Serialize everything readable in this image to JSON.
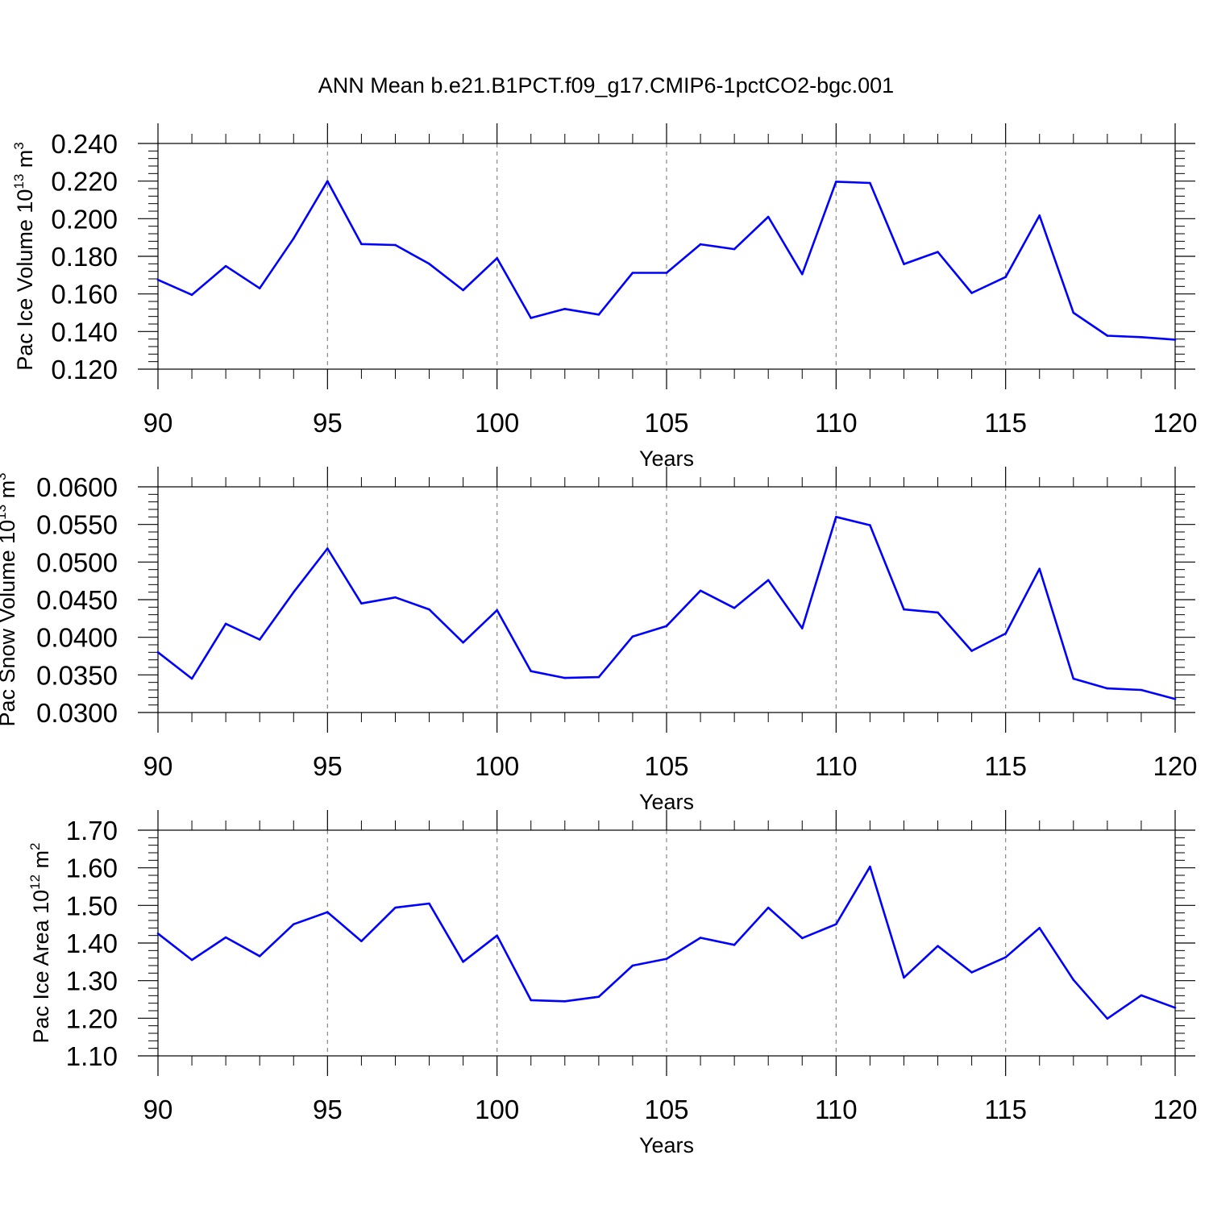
{
  "title": "ANN Mean b.e21.B1PCT.f09_g17.CMIP6-1pctCO2-bgc.001",
  "series_color": "#0000ff",
  "chart_data": [
    {
      "type": "line",
      "ylabel_main": "Pac Ice Volume 10",
      "ylabel_exp": "13",
      "ylabel_unit": "m",
      "ylabel_unit_exp": "3",
      "xlabel": "Years",
      "xlim": [
        90,
        120
      ],
      "ylim": [
        0.12,
        0.24
      ],
      "yticks": [
        0.12,
        0.14,
        0.16,
        0.18,
        0.2,
        0.22,
        0.24
      ],
      "ytick_labels": [
        "0.120",
        "0.140",
        "0.160",
        "0.180",
        "0.200",
        "0.220",
        "0.240"
      ],
      "xticks": [
        90,
        95,
        100,
        105,
        110,
        115,
        120
      ],
      "xtick_labels": [
        "90",
        "95",
        "100",
        "105",
        "110",
        "115",
        "120"
      ],
      "grid": "vertical dashed at major x ticks",
      "x": [
        90,
        91,
        92,
        93,
        94,
        95,
        96,
        97,
        98,
        99,
        100,
        101,
        102,
        103,
        104,
        105,
        106,
        107,
        108,
        109,
        110,
        111,
        112,
        113,
        114,
        115,
        116,
        117,
        118,
        119,
        120
      ],
      "values": [
        0.1675,
        0.1595,
        0.1748,
        0.163,
        0.1895,
        0.22,
        0.1865,
        0.186,
        0.176,
        0.162,
        0.179,
        0.1472,
        0.152,
        0.149,
        0.1712,
        0.1712,
        0.1864,
        0.1838,
        0.201,
        0.1705,
        0.2197,
        0.219,
        0.1759,
        0.1823,
        0.1605,
        0.169,
        0.2017,
        0.15,
        0.1378,
        0.137,
        0.1357
      ]
    },
    {
      "type": "line",
      "ylabel_main": "Pac Snow Volume 10",
      "ylabel_exp": "13",
      "ylabel_unit": "m",
      "ylabel_unit_exp": "3",
      "xlabel": "Years",
      "xlim": [
        90,
        120
      ],
      "ylim": [
        0.03,
        0.06
      ],
      "yticks": [
        0.03,
        0.035,
        0.04,
        0.045,
        0.05,
        0.055,
        0.06
      ],
      "ytick_labels": [
        "0.0300",
        "0.0350",
        "0.0400",
        "0.0450",
        "0.0500",
        "0.0550",
        "0.0600"
      ],
      "xticks": [
        90,
        95,
        100,
        105,
        110,
        115,
        120
      ],
      "xtick_labels": [
        "90",
        "95",
        "100",
        "105",
        "110",
        "115",
        "120"
      ],
      "grid": "vertical dashed at major x ticks",
      "x": [
        90,
        91,
        92,
        93,
        94,
        95,
        96,
        97,
        98,
        99,
        100,
        101,
        102,
        103,
        104,
        105,
        106,
        107,
        108,
        109,
        110,
        111,
        112,
        113,
        114,
        115,
        116,
        117,
        118,
        119,
        120
      ],
      "values": [
        0.038,
        0.0345,
        0.0418,
        0.0397,
        0.046,
        0.0518,
        0.0445,
        0.0453,
        0.0437,
        0.0393,
        0.0436,
        0.0355,
        0.0346,
        0.0347,
        0.0401,
        0.0415,
        0.0462,
        0.0439,
        0.0476,
        0.0412,
        0.056,
        0.0549,
        0.0437,
        0.0433,
        0.0382,
        0.0405,
        0.0491,
        0.0345,
        0.0332,
        0.033,
        0.0318
      ]
    },
    {
      "type": "line",
      "ylabel_main": "Pac Ice Area 10",
      "ylabel_exp": "12",
      "ylabel_unit": "m",
      "ylabel_unit_exp": "2",
      "xlabel": "Years",
      "xlim": [
        90,
        120
      ],
      "ylim": [
        1.1,
        1.7
      ],
      "yticks": [
        1.1,
        1.2,
        1.3,
        1.4,
        1.5,
        1.6,
        1.7
      ],
      "ytick_labels": [
        "1.10",
        "1.20",
        "1.30",
        "1.40",
        "1.50",
        "1.60",
        "1.70"
      ],
      "xticks": [
        90,
        95,
        100,
        105,
        110,
        115,
        120
      ],
      "xtick_labels": [
        "90",
        "95",
        "100",
        "105",
        "110",
        "115",
        "120"
      ],
      "grid": "vertical dashed at major x ticks",
      "x": [
        90,
        91,
        92,
        93,
        94,
        95,
        96,
        97,
        98,
        99,
        100,
        101,
        102,
        103,
        104,
        105,
        106,
        107,
        108,
        109,
        110,
        111,
        112,
        113,
        114,
        115,
        116,
        117,
        118,
        119,
        120
      ],
      "values": [
        1.425,
        1.355,
        1.415,
        1.365,
        1.45,
        1.482,
        1.405,
        1.494,
        1.505,
        1.35,
        1.42,
        1.248,
        1.245,
        1.257,
        1.34,
        1.358,
        1.414,
        1.395,
        1.494,
        1.413,
        1.45,
        1.603,
        1.308,
        1.392,
        1.322,
        1.362,
        1.44,
        1.302,
        1.199,
        1.261,
        1.228
      ]
    }
  ]
}
